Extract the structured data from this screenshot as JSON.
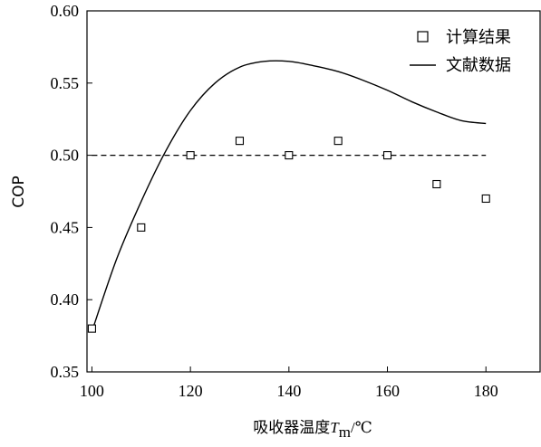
{
  "chart_data": {
    "type": "scatter",
    "xlabel_prefix": "吸收器温度",
    "xlabel_var": "T",
    "xlabel_sub": "m",
    "xlabel_unit": "/℃",
    "ylabel": "COP",
    "xlim": [
      99,
      191
    ],
    "ylim": [
      0.35,
      0.6
    ],
    "xticks": [
      100,
      120,
      140,
      160,
      180
    ],
    "yticks": [
      "0.35",
      "0.40",
      "0.45",
      "0.50",
      "0.55",
      "0.60"
    ],
    "legend_position": "top-right",
    "series": [
      {
        "name": "计算结果",
        "type": "scatter",
        "marker": "open-square",
        "color": "#000000",
        "x": [
          100,
          110,
          120,
          130,
          140,
          150,
          160,
          170,
          180
        ],
        "y": [
          0.38,
          0.45,
          0.5,
          0.51,
          0.5,
          0.51,
          0.5,
          0.48,
          0.47
        ]
      },
      {
        "name": "文献数据",
        "type": "line",
        "color": "#000000",
        "x": [
          100,
          105,
          110,
          115,
          120,
          125,
          130,
          135,
          140,
          145,
          150,
          155,
          160,
          165,
          170,
          175,
          180
        ],
        "y": [
          0.378,
          0.428,
          0.468,
          0.503,
          0.531,
          0.55,
          0.561,
          0.565,
          0.565,
          0.562,
          0.558,
          0.552,
          0.545,
          0.537,
          0.53,
          0.524,
          0.522
        ]
      }
    ],
    "reference_line": {
      "y": 0.5,
      "x": [
        100,
        180
      ],
      "style": "dashed"
    }
  }
}
